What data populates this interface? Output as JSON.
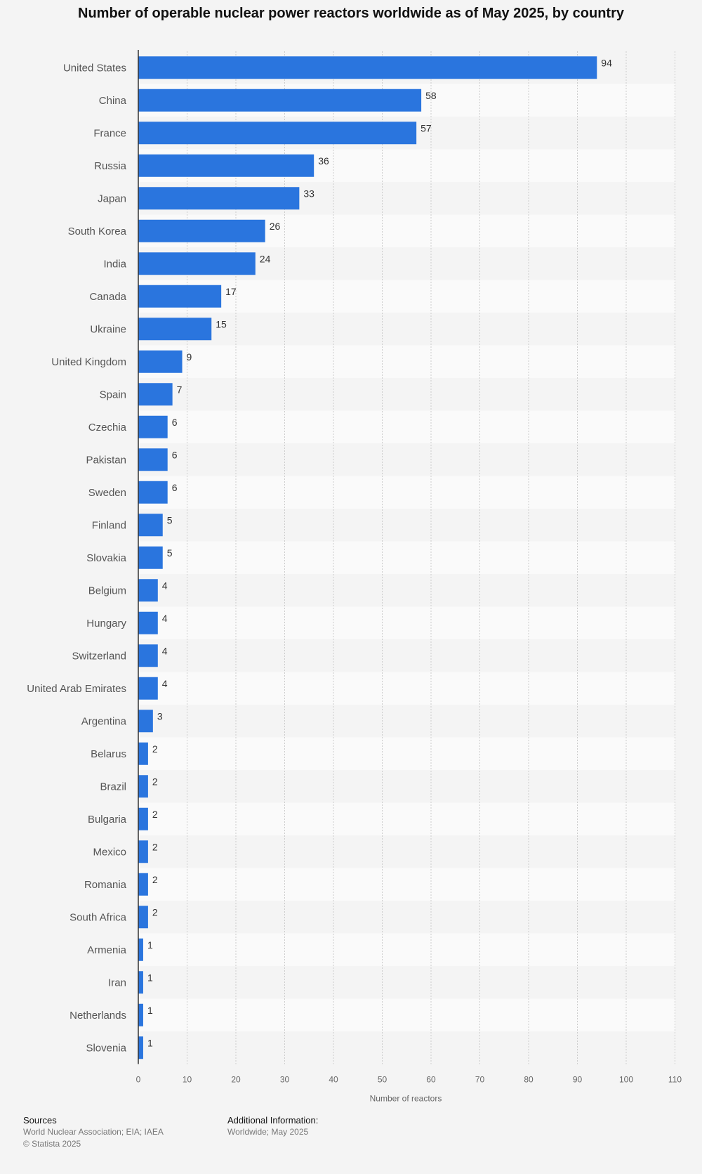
{
  "colors": {
    "bar": "#2a75de",
    "stripe_a": "#f4f4f4",
    "stripe_b": "#fafafa",
    "grid": "#cccccc",
    "axis_line": "#333333",
    "label": "#555555",
    "tick": "#666666"
  },
  "chart_data": {
    "type": "bar",
    "orientation": "horizontal",
    "title": "Number of operable nuclear power reactors worldwide as of May 2025, by country",
    "xlabel": "Number of reactors",
    "ylabel": "",
    "xlim": [
      0,
      110
    ],
    "xticks": [
      0,
      10,
      20,
      30,
      40,
      50,
      60,
      70,
      80,
      90,
      100,
      110
    ],
    "grid": true,
    "data_labels": true,
    "categories": [
      "United States",
      "China",
      "France",
      "Russia",
      "Japan",
      "South Korea",
      "India",
      "Canada",
      "Ukraine",
      "United Kingdom",
      "Spain",
      "Czechia",
      "Pakistan",
      "Sweden",
      "Finland",
      "Slovakia",
      "Belgium",
      "Hungary",
      "Switzerland",
      "United Arab Emirates",
      "Argentina",
      "Belarus",
      "Brazil",
      "Bulgaria",
      "Mexico",
      "Romania",
      "South Africa",
      "Armenia",
      "Iran",
      "Netherlands",
      "Slovenia"
    ],
    "values": [
      94,
      58,
      57,
      36,
      33,
      26,
      24,
      17,
      15,
      9,
      7,
      6,
      6,
      6,
      5,
      5,
      4,
      4,
      4,
      4,
      3,
      2,
      2,
      2,
      2,
      2,
      2,
      1,
      1,
      1,
      1
    ]
  },
  "footer": {
    "sources_heading": "Sources",
    "sources_text": "World Nuclear Association; EIA; IAEA",
    "copyright": "© Statista 2025",
    "additional_heading": "Additional Information:",
    "additional_text": "Worldwide; May 2025"
  }
}
